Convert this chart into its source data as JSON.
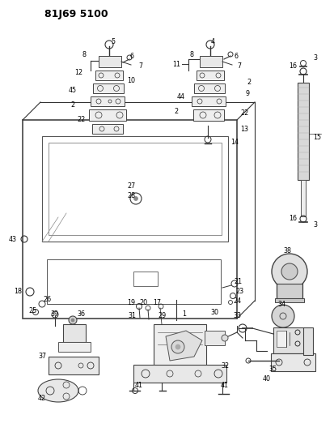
{
  "title": "81J69 5100",
  "bg_color": "#ffffff",
  "line_color": "#000000",
  "fig_width": 4.13,
  "fig_height": 5.33,
  "dpi": 100
}
